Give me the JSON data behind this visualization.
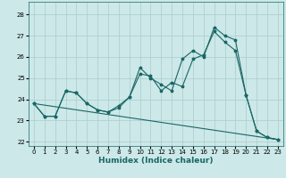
{
  "title": "",
  "xlabel": "Humidex (Indice chaleur)",
  "bg_color": "#cce8e8",
  "grid_color": "#aacccc",
  "line_color": "#1a6666",
  "xlim": [
    -0.5,
    23.5
  ],
  "ylim": [
    21.8,
    28.6
  ],
  "yticks": [
    22,
    23,
    24,
    25,
    26,
    27,
    28
  ],
  "xticks": [
    0,
    1,
    2,
    3,
    4,
    5,
    6,
    7,
    8,
    9,
    10,
    11,
    12,
    13,
    14,
    15,
    16,
    17,
    18,
    19,
    20,
    21,
    22,
    23
  ],
  "series1_x": [
    0,
    1,
    2,
    3,
    4,
    5,
    6,
    7,
    8,
    9,
    10,
    11,
    12,
    13,
    14,
    15,
    16,
    17,
    18,
    19,
    20,
    21,
    22,
    23
  ],
  "series1_y": [
    23.8,
    23.2,
    23.2,
    24.4,
    24.3,
    23.8,
    23.5,
    23.4,
    23.6,
    24.1,
    25.2,
    25.1,
    24.4,
    24.8,
    24.6,
    25.9,
    26.1,
    27.2,
    26.7,
    26.3,
    24.2,
    22.5,
    22.2,
    22.1
  ],
  "series2_x": [
    0,
    1,
    2,
    3,
    4,
    5,
    6,
    7,
    8,
    9,
    10,
    11,
    12,
    13,
    14,
    15,
    16,
    17,
    18,
    19,
    20,
    21,
    22,
    23
  ],
  "series2_y": [
    23.8,
    23.2,
    23.2,
    24.4,
    24.3,
    23.8,
    23.5,
    23.4,
    23.7,
    24.1,
    25.5,
    25.0,
    24.7,
    24.4,
    25.9,
    26.3,
    26.0,
    27.4,
    27.0,
    26.8,
    24.2,
    22.5,
    22.2,
    22.1
  ],
  "series3_x": [
    0,
    23
  ],
  "series3_y": [
    23.8,
    22.1
  ],
  "figsize": [
    3.2,
    2.0
  ],
  "dpi": 100,
  "label_fontsize": 6.5,
  "tick_fontsize": 5.0
}
